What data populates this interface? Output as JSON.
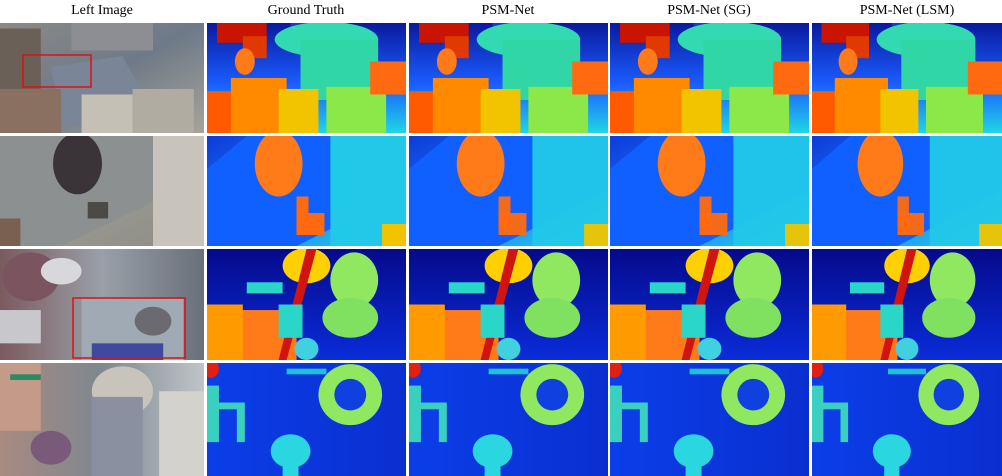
{
  "columns": [
    "Left Image",
    "Ground Truth",
    "PSM-Net",
    "PSM-Net (SG)",
    "PSM-Net (LSM)"
  ]
}
